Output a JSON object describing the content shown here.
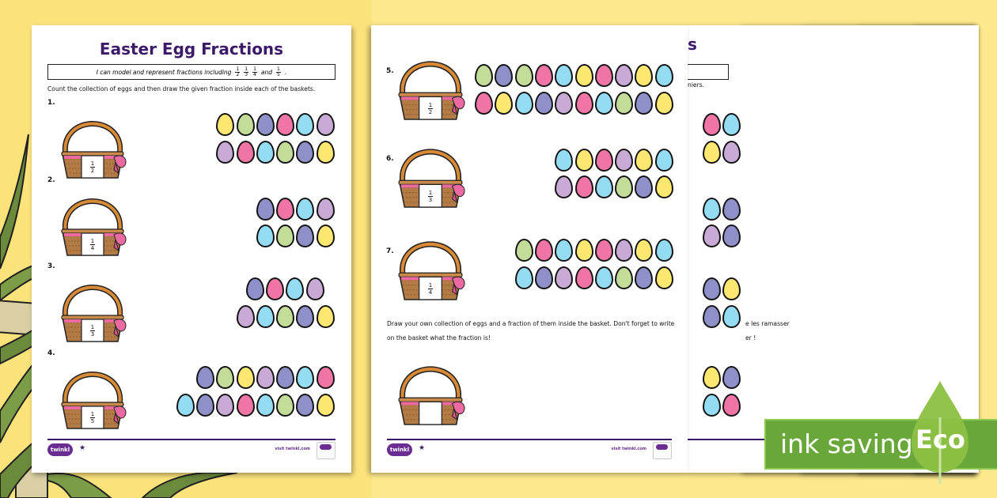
{
  "colors": {
    "background": "#fde88c",
    "title": "#3c1a6a",
    "eco_green": "#6aa73a",
    "eco_leaf": "#8cc043",
    "eggs": {
      "Y": "#fce871",
      "G": "#c3dd98",
      "P": "#8f90c9",
      "K": "#f074a6",
      "C": "#93dcf4",
      "L": "#c9a9d6"
    }
  },
  "worksheet": {
    "title": "Easter Egg Fractions",
    "objective": {
      "text": "I can model and represent fractions including",
      "fractions": [
        {
          "n": "1",
          "d": "2"
        },
        {
          "n": "1",
          "d": "3"
        },
        {
          "n": "1",
          "d": "4"
        }
      ],
      "and": "and",
      "last_fraction": {
        "n": "1",
        "d": "5"
      },
      "end": "."
    },
    "instruction": "Count the collection of eggs and then draw the given fraction inside each of the baskets.",
    "questions": [
      {
        "number": "1.",
        "fraction": {
          "n": "1",
          "d": "2"
        },
        "eggs": [
          [
            "Y",
            "G",
            "P",
            "K",
            "C",
            "L"
          ],
          [
            "L",
            "K",
            "C",
            "G",
            "P",
            "Y"
          ]
        ]
      },
      {
        "number": "2.",
        "fraction": {
          "n": "1",
          "d": "4"
        },
        "eggs": [
          [
            "P",
            "K",
            "C",
            "L"
          ],
          [
            "C",
            "G",
            "P",
            "Y"
          ]
        ]
      },
      {
        "number": "3.",
        "fraction": {
          "n": "1",
          "d": "3"
        },
        "eggs": [
          [
            "P",
            "K",
            "C",
            "L"
          ],
          [
            "L",
            "C",
            "G",
            "P",
            "Y"
          ]
        ]
      },
      {
        "number": "4.",
        "fraction": {
          "n": "1",
          "d": "5"
        },
        "eggs": [
          [
            "P",
            "G",
            "Y",
            "L",
            "P",
            "C",
            "K"
          ],
          [
            "C",
            "P",
            "L",
            "K",
            "C",
            "G",
            "P",
            "Y"
          ]
        ]
      }
    ],
    "footer": {
      "logo": "twinkl",
      "url": "visit twinkl.com"
    }
  },
  "worksheet_page2": {
    "questions": [
      {
        "number": "5.",
        "fraction": {
          "n": "1",
          "d": "2"
        },
        "eggs": [
          [
            "G",
            "P",
            "G",
            "K",
            "C",
            "Y",
            "K",
            "L",
            "Y",
            "C"
          ],
          [
            "K",
            "Y",
            "C",
            "P",
            "L",
            "K",
            "C",
            "G",
            "P",
            "Y"
          ]
        ]
      },
      {
        "number": "6.",
        "fraction": {
          "n": "1",
          "d": "3"
        },
        "eggs": [
          [
            "C",
            "Y",
            "K",
            "L",
            "Y",
            "C"
          ],
          [
            "L",
            "K",
            "C",
            "G",
            "P",
            "Y"
          ]
        ]
      },
      {
        "number": "7.",
        "fraction": {
          "n": "1",
          "d": "4"
        },
        "eggs": [
          [
            "G",
            "K",
            "C",
            "Y",
            "K",
            "L",
            "Y",
            "C"
          ],
          [
            "C",
            "P",
            "L",
            "K",
            "C",
            "G",
            "P",
            "Y"
          ]
        ]
      }
    ],
    "draw_instruction_line1": "Draw your own collection of eggs and a fraction of them inside the basket. Don't forget to write",
    "draw_instruction_line2": "on the basket what the fraction is!",
    "footer": {
      "logo": "twinkl",
      "url": "visit twinkl.com"
    }
  },
  "back_pages": [
    {
      "fragments": [
        "s",
        "niers.",
        "e les ramasser",
        "er !"
      ]
    },
    {
      "fragments": []
    },
    {
      "fragments": []
    },
    {
      "fragments": [
        "baskets."
      ]
    },
    {
      "fragments": [
        "baskets."
      ]
    }
  ],
  "eco_badge": {
    "text": "ink saving",
    "label": "Eco"
  }
}
